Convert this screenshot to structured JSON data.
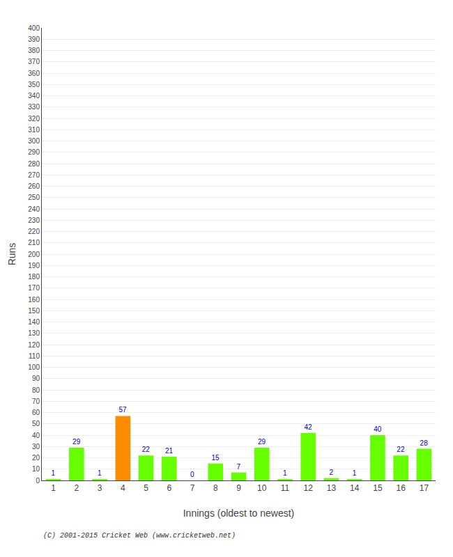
{
  "chart_data": {
    "type": "bar",
    "xlabel": "Innings (oldest to newest)",
    "ylabel": "Runs",
    "categories": [
      "1",
      "2",
      "3",
      "4",
      "5",
      "6",
      "7",
      "8",
      "9",
      "10",
      "11",
      "12",
      "13",
      "14",
      "15",
      "16",
      "17"
    ],
    "values": [
      1,
      29,
      1,
      57,
      22,
      21,
      0,
      15,
      7,
      29,
      1,
      42,
      2,
      1,
      40,
      22,
      28
    ],
    "colors": [
      "#66ff00",
      "#66ff00",
      "#66ff00",
      "#ff8c00",
      "#66ff00",
      "#66ff00",
      "#66ff00",
      "#66ff00",
      "#66ff00",
      "#66ff00",
      "#66ff00",
      "#66ff00",
      "#66ff00",
      "#66ff00",
      "#66ff00",
      "#66ff00",
      "#66ff00"
    ],
    "ylim": [
      0,
      400
    ],
    "yticks": [
      0,
      10,
      20,
      30,
      40,
      50,
      60,
      70,
      80,
      90,
      100,
      110,
      120,
      130,
      140,
      150,
      160,
      170,
      180,
      190,
      200,
      210,
      220,
      230,
      240,
      250,
      260,
      270,
      280,
      290,
      300,
      310,
      320,
      330,
      340,
      350,
      360,
      370,
      380,
      390,
      400
    ],
    "grid": true,
    "data_labels": true,
    "annotations": [
      "(C) 2001-2015 Cricket Web (www.cricketweb.net)"
    ]
  }
}
